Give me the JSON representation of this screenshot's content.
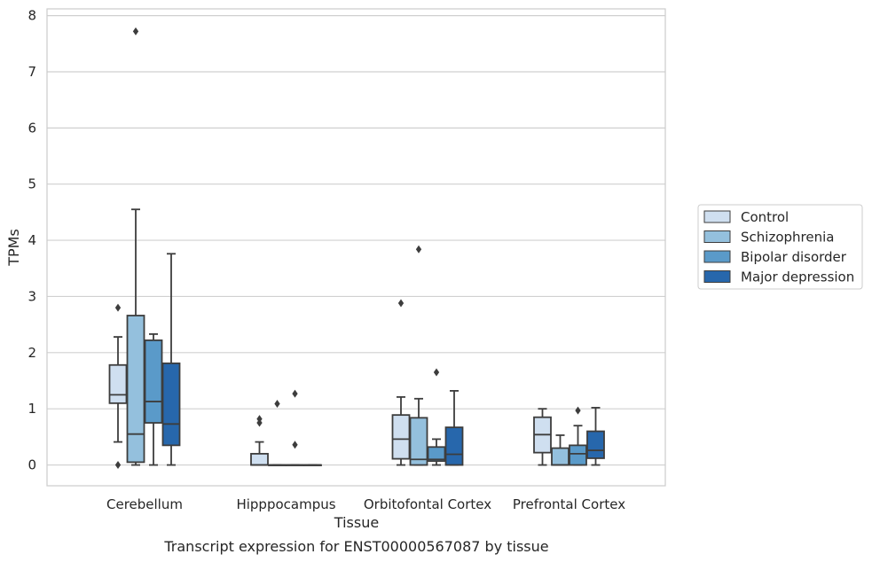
{
  "chart_data": {
    "type": "box",
    "title": "",
    "caption": "Transcript expression for ENST00000567087 by tissue",
    "xlabel": "Tissue",
    "ylabel": "TPMs",
    "ylim": [
      -0.37,
      8.12
    ],
    "yticks": [
      0,
      1,
      2,
      3,
      4,
      5,
      6,
      7,
      8
    ],
    "grid": "horizontal",
    "legend_position": "right",
    "categories": [
      "Cerebellum",
      "Hipppocampus",
      "Orbitofontal Cortex",
      "Prefrontal Cortex"
    ],
    "series": [
      {
        "name": "Control",
        "color": "#cfdff0",
        "boxes": [
          {
            "min": 0.41,
            "q1": 1.1,
            "median": 1.25,
            "q3": 1.78,
            "max": 2.28,
            "outliers": [
              2.8,
              0.0
            ]
          },
          {
            "min": 0.0,
            "q1": 0.0,
            "median": 0.0,
            "q3": 0.2,
            "max": 0.41,
            "outliers": [
              0.82,
              0.75
            ]
          },
          {
            "min": 0.0,
            "q1": 0.11,
            "median": 0.46,
            "q3": 0.89,
            "max": 1.21,
            "outliers": [
              2.88
            ]
          },
          {
            "min": 0.0,
            "q1": 0.22,
            "median": 0.54,
            "q3": 0.85,
            "max": 1.0,
            "outliers": []
          }
        ]
      },
      {
        "name": "Schizophrenia",
        "color": "#94c0dd",
        "boxes": [
          {
            "min": 0.0,
            "q1": 0.05,
            "median": 0.55,
            "q3": 2.66,
            "max": 4.55,
            "outliers": [
              7.72
            ]
          },
          {
            "min": 0.0,
            "q1": 0.0,
            "median": 0.0,
            "q3": 0.0,
            "max": 0.0,
            "outliers": [
              1.09
            ]
          },
          {
            "min": 0.0,
            "q1": 0.0,
            "median": 0.1,
            "q3": 0.84,
            "max": 1.18,
            "outliers": [
              3.84
            ]
          },
          {
            "min": 0.0,
            "q1": 0.0,
            "median": 0.0,
            "q3": 0.3,
            "max": 0.53,
            "outliers": []
          }
        ]
      },
      {
        "name": "Bipolar disorder",
        "color": "#5a9ac9",
        "boxes": [
          {
            "min": 0.0,
            "q1": 0.75,
            "median": 1.13,
            "q3": 2.22,
            "max": 2.33,
            "outliers": []
          },
          {
            "min": 0.0,
            "q1": 0.0,
            "median": 0.0,
            "q3": 0.0,
            "max": 0.0,
            "outliers": [
              1.27,
              0.36
            ]
          },
          {
            "min": 0.0,
            "q1": 0.07,
            "median": 0.1,
            "q3": 0.32,
            "max": 0.46,
            "outliers": [
              1.65
            ]
          },
          {
            "min": 0.0,
            "q1": 0.0,
            "median": 0.2,
            "q3": 0.35,
            "max": 0.7,
            "outliers": [
              0.97
            ]
          }
        ]
      },
      {
        "name": "Major depression",
        "color": "#2767ac",
        "boxes": [
          {
            "min": 0.0,
            "q1": 0.35,
            "median": 0.73,
            "q3": 1.81,
            "max": 3.76,
            "outliers": []
          },
          {
            "min": 0.0,
            "q1": 0.0,
            "median": 0.0,
            "q3": 0.0,
            "max": 0.0,
            "outliers": []
          },
          {
            "min": 0.0,
            "q1": 0.0,
            "median": 0.19,
            "q3": 0.67,
            "max": 1.32,
            "outliers": []
          },
          {
            "min": 0.0,
            "q1": 0.12,
            "median": 0.26,
            "q3": 0.6,
            "max": 1.02,
            "outliers": []
          }
        ]
      }
    ]
  }
}
